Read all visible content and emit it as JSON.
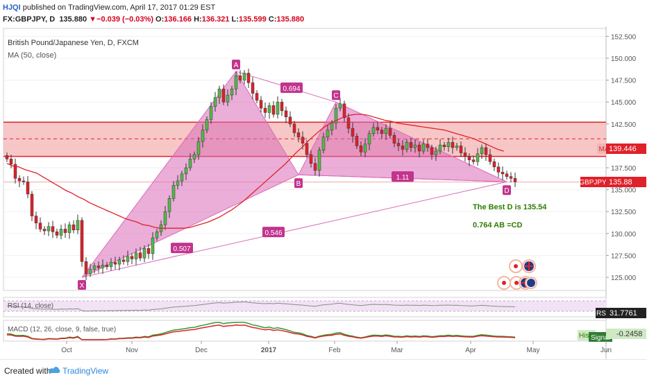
{
  "header": {
    "author": "HJQI",
    "published": "published on TradingView.com, April 17, 2017 01:29 EST",
    "symbol": "FX:GBPJPY, D",
    "last": "135.880",
    "arrow": "▼",
    "change": "−0.039 (−0.03%)",
    "o_label": "O:",
    "o": "136.166",
    "h_label": "H:",
    "h": "136.321",
    "l_label": "L:",
    "l": "135.599",
    "c_label": "C:",
    "c": "135.880"
  },
  "legend": {
    "title": "British Pound/Japanese Yen, D, FXCM",
    "ma": "MA (50, close)",
    "rsi": "RSI (14, close)",
    "macd": "MACD (12, 26, close, 9, false, true)"
  },
  "colors": {
    "up": "#53b949",
    "down": "#e0202a",
    "pattern": "#d96bb8",
    "zone": "#f4b4b4",
    "ma": "#e0202a",
    "price_tag": "#e0202a",
    "annotation": "#2e7d00"
  },
  "chart_data": {
    "type": "candlestick",
    "y_axis_ticks": [
      "152.500",
      "150.000",
      "147.500",
      "145.000",
      "142.500",
      "140.000",
      "137.500",
      "135.000",
      "132.500",
      "130.000",
      "127.500",
      "125.000"
    ],
    "x_axis_ticks": [
      "Oct",
      "Nov",
      "Dec",
      "2017",
      "Feb",
      "Mar",
      "Apr",
      "May",
      "Jun"
    ],
    "ylim": [
      123.5,
      153.4
    ],
    "last_price": 135.88,
    "ma_value": 139.446,
    "price_tag_label": "GBPJPY",
    "ma_tag_label": "MA",
    "zone": {
      "top": 142.7,
      "mid": 140.8,
      "bottom": 138.8
    },
    "closes": [
      138.5,
      137.9,
      136.3,
      136.0,
      135.9,
      134.5,
      132.0,
      131.2,
      130.5,
      130.3,
      130.8,
      130.2,
      129.8,
      130.5,
      130.1,
      131.0,
      130.4,
      131.5,
      126.8,
      125.4,
      125.9,
      126.3,
      126.1,
      126.4,
      126.2,
      126.7,
      126.5,
      127.0,
      126.8,
      127.4,
      127.1,
      127.8,
      127.2,
      128.3,
      127.7,
      129.5,
      130.2,
      131.0,
      132.5,
      134.0,
      135.5,
      136.0,
      136.8,
      137.5,
      138.5,
      139.0,
      140.5,
      141.8,
      143.0,
      144.5,
      145.5,
      146.5,
      145.0,
      145.8,
      146.5,
      148.0,
      147.5,
      148.3,
      147.2,
      146.0,
      145.2,
      144.3,
      143.8,
      144.6,
      143.6,
      145.0,
      144.0,
      143.3,
      142.5,
      141.5,
      141.0,
      140.3,
      139.0,
      138.0,
      137.2,
      139.5,
      141.0,
      141.8,
      142.6,
      144.3,
      144.8,
      143.2,
      142.0,
      141.1,
      140.0,
      139.3,
      140.2,
      141.4,
      142.1,
      141.8,
      141.4,
      142.0,
      141.2,
      140.3,
      140.0,
      139.6,
      140.4,
      139.8,
      140.1,
      139.4,
      140.2,
      139.8,
      139.0,
      139.4,
      140.1,
      139.9,
      140.4,
      139.8,
      140.0,
      139.2,
      138.8,
      138.4,
      138.2,
      139.1,
      139.8,
      139.0,
      138.2,
      137.6,
      137.0,
      136.8,
      136.5,
      136.3,
      135.9
    ],
    "ma": [
      138.0,
      137.7,
      137.6,
      137.3,
      137.1,
      136.9,
      136.5,
      136.1,
      135.7,
      135.3,
      134.9,
      134.6,
      134.2,
      133.9,
      133.5,
      133.2,
      132.9,
      132.6,
      132.3,
      132.0,
      131.7,
      131.5,
      131.3,
      131.0,
      130.9,
      130.7,
      130.6,
      130.6,
      130.6,
      130.6,
      130.6,
      130.7,
      130.9,
      131.1,
      131.3,
      131.6,
      131.9,
      132.3,
      132.7,
      133.2,
      133.7,
      134.3,
      134.9,
      135.5,
      136.1,
      136.7,
      137.3,
      137.9,
      138.6,
      139.3,
      139.9,
      140.6,
      141.2,
      141.8,
      142.3,
      142.7,
      143.0,
      143.3,
      143.5,
      143.6,
      143.6,
      143.5,
      143.3,
      143.1,
      142.9,
      142.8,
      142.6,
      142.5,
      142.4,
      142.3,
      142.2,
      142.1,
      142.0,
      141.9,
      141.8,
      141.6,
      141.4,
      141.2,
      141.0,
      140.8,
      140.5,
      140.2,
      139.9,
      139.6,
      139.4
    ],
    "pattern_points": [
      {
        "label": "X",
        "value": 125.0
      },
      {
        "label": "A",
        "value": 148.5
      },
      {
        "label": "B",
        "value": 136.7
      },
      {
        "label": "C",
        "value": 145.0
      },
      {
        "label": "D",
        "value": 135.9
      }
    ],
    "ratios": [
      "0.507",
      "0.694",
      "0.546",
      "1.11"
    ],
    "annotations": [
      "The Best D is 135.54",
      "0.764 AB =CD"
    ],
    "rsi_value": "31.7761",
    "rsi_label": "RSI",
    "macd_hist_label": "Hist",
    "macd_signal_label": "Signal",
    "macd_value": "-0.2458"
  },
  "footer": {
    "created": "Created with",
    "brand": "TradingView"
  }
}
